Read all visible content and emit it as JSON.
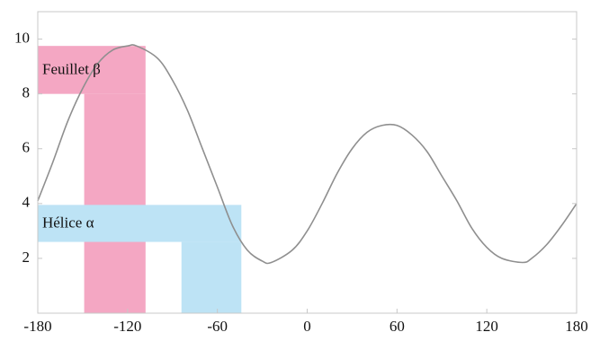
{
  "chart_data": {
    "type": "line",
    "title": "",
    "xlabel": "",
    "ylabel": "",
    "xlim": [
      -180,
      180
    ],
    "ylim": [
      0,
      11
    ],
    "x_ticks": [
      -180,
      -120,
      -60,
      0,
      60,
      120,
      180
    ],
    "x_tick_labels": [
      "-180",
      "-120",
      "-60",
      "0",
      "60",
      "120",
      "180"
    ],
    "y_ticks": [
      2,
      4,
      6,
      8,
      10
    ],
    "y_tick_labels": [
      "2",
      "4",
      "6",
      "8",
      "10"
    ],
    "grid": false,
    "series": [
      {
        "color": "#8f8f8f",
        "x": [
          -180,
          -170,
          -160,
          -150,
          -140,
          -130,
          -120,
          -114,
          -100,
          -90,
          -80,
          -70,
          -60,
          -50,
          -40,
          -30,
          -24,
          -10,
          0,
          10,
          20,
          30,
          40,
          50,
          60,
          70,
          80,
          90,
          100,
          110,
          120,
          130,
          144,
          150,
          160,
          170,
          180
        ],
        "y": [
          4.1,
          5.5,
          7.0,
          8.2,
          9.1,
          9.6,
          9.75,
          9.75,
          9.3,
          8.5,
          7.4,
          6.0,
          4.6,
          3.2,
          2.3,
          1.9,
          1.85,
          2.3,
          3.0,
          4.0,
          5.1,
          6.0,
          6.6,
          6.85,
          6.85,
          6.5,
          5.9,
          5.0,
          4.1,
          3.1,
          2.4,
          2.0,
          1.85,
          2.0,
          2.5,
          3.2,
          4.0
        ]
      }
    ],
    "regions": [
      {
        "label": "Feuillet β",
        "color": "#f4a7c3",
        "rects": [
          {
            "x0": -180,
            "x1": -108,
            "y0": 8.0,
            "y1": 9.75
          },
          {
            "x0": -149,
            "x1": -108,
            "y0": 0,
            "y1": 8.0
          }
        ],
        "label_at": {
          "x": -177,
          "y": 8.85
        }
      },
      {
        "label": "Hélice α",
        "color": "#bde3f5",
        "rects": [
          {
            "x0": -180,
            "x1": -44,
            "y0": 2.6,
            "y1": 3.95
          },
          {
            "x0": -84,
            "x1": -44,
            "y0": 0,
            "y1": 2.6
          }
        ],
        "label_at": {
          "x": -177,
          "y": 3.25
        }
      }
    ]
  }
}
